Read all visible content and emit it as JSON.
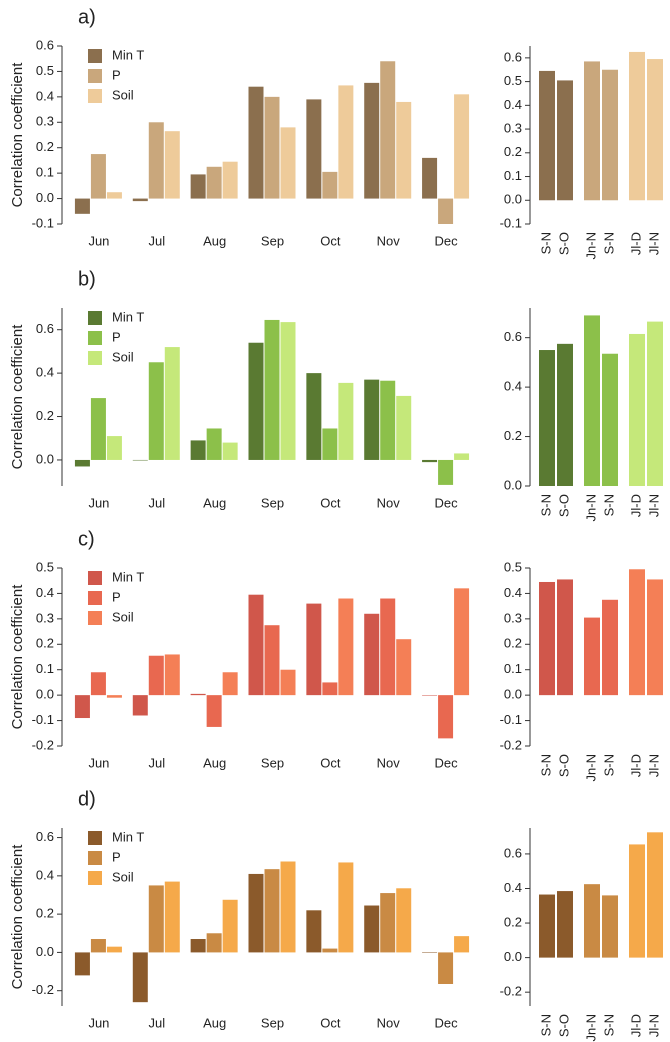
{
  "chart_data": [
    {
      "type": "bar",
      "panel_label": "a)",
      "ylabel": "Correlation coefficient",
      "legend": "upper left",
      "categories": [
        "Jun",
        "Jul",
        "Aug",
        "Sep",
        "Oct",
        "Nov",
        "Dec"
      ],
      "series": [
        {
          "name": "Min T",
          "color": "#8b6f4e",
          "values": [
            -0.06,
            -0.01,
            0.095,
            0.44,
            0.39,
            0.455,
            0.16
          ]
        },
        {
          "name": "P",
          "color": "#c9a77c",
          "values": [
            0.175,
            0.3,
            0.125,
            0.4,
            0.105,
            0.54,
            -0.1
          ]
        },
        {
          "name": "Soil",
          "color": "#eecb9a",
          "values": [
            0.025,
            0.265,
            0.145,
            0.28,
            0.445,
            0.38,
            0.41
          ]
        }
      ],
      "ylim": [
        -0.1,
        0.6
      ],
      "yticks": [
        -0.1,
        {
          "value": 0,
          "label": "0.0"
        },
        0.1,
        0.2,
        0.3,
        0.4,
        0.5,
        0.6
      ]
    },
    {
      "type": "bar",
      "categories": [
        "S-N",
        "S-O",
        "Jn-N",
        "S-N",
        "Jl-D",
        "Jl-N"
      ],
      "values": [
        0.545,
        0.505,
        0.585,
        0.55,
        0.625,
        0.595
      ],
      "colors": [
        "#8b6f4e",
        "#8b6f4e",
        "#c9a77c",
        "#c9a77c",
        "#eecb9a",
        "#eecb9a"
      ],
      "ylim": [
        -0.1,
        0.65
      ],
      "yticks": [
        -0.1,
        {
          "value": 0,
          "label": "0.0"
        },
        0.1,
        0.2,
        0.3,
        0.4,
        0.5,
        0.6
      ]
    },
    {
      "type": "bar",
      "panel_label": "b)",
      "ylabel": "Correlation coefficient",
      "legend": "upper left",
      "categories": [
        "Jun",
        "Jul",
        "Aug",
        "Sep",
        "Oct",
        "Nov",
        "Dec"
      ],
      "series": [
        {
          "name": "Min T",
          "color": "#5a7a32",
          "values": [
            -0.03,
            0.0,
            0.09,
            0.54,
            0.4,
            0.37,
            -0.01
          ]
        },
        {
          "name": "P",
          "color": "#8cc04a",
          "values": [
            0.285,
            0.45,
            0.145,
            0.645,
            0.145,
            0.365,
            -0.115
          ]
        },
        {
          "name": "Soil",
          "color": "#c5e87a",
          "values": [
            0.11,
            0.52,
            0.08,
            0.635,
            0.355,
            0.295,
            0.03
          ]
        }
      ],
      "ylim": [
        -0.12,
        0.7
      ],
      "yticks": [
        {
          "value": 0,
          "label": "0.0"
        },
        0.2,
        0.4,
        0.6
      ]
    },
    {
      "type": "bar",
      "categories": [
        "S-N",
        "S-O",
        "Jn-N",
        "S-N",
        "Jl-D",
        "Jl-N"
      ],
      "values": [
        0.55,
        0.575,
        0.69,
        0.535,
        0.615,
        0.665
      ],
      "colors": [
        "#5a7a32",
        "#5a7a32",
        "#8cc04a",
        "#8cc04a",
        "#c5e87a",
        "#c5e87a"
      ],
      "ylim": [
        0,
        0.72
      ],
      "yticks": [
        {
          "value": 0,
          "label": "0.0"
        },
        0.2,
        0.4,
        0.6
      ]
    },
    {
      "type": "bar",
      "panel_label": "c)",
      "ylabel": "Correlation coefficient",
      "legend": "upper left",
      "categories": [
        "Jun",
        "Jul",
        "Aug",
        "Sep",
        "Oct",
        "Nov",
        "Dec"
      ],
      "series": [
        {
          "name": "Min T",
          "color": "#d0574b",
          "values": [
            -0.09,
            -0.08,
            0.005,
            0.395,
            0.36,
            0.32,
            0.0
          ]
        },
        {
          "name": "P",
          "color": "#e86850",
          "values": [
            0.09,
            0.155,
            -0.125,
            0.275,
            0.05,
            0.38,
            -0.17
          ]
        },
        {
          "name": "Soil",
          "color": "#f47f56",
          "values": [
            -0.01,
            0.16,
            0.09,
            0.1,
            0.38,
            0.22,
            0.42
          ]
        }
      ],
      "ylim": [
        -0.2,
        0.5
      ],
      "yticks": [
        -0.2,
        -0.1,
        {
          "value": 0,
          "label": "0.0"
        },
        0.1,
        0.2,
        0.3,
        0.4,
        0.5
      ]
    },
    {
      "type": "bar",
      "categories": [
        "S-N",
        "S-O",
        "Jn-N",
        "S-N",
        "Jl-D",
        "Jl-N"
      ],
      "values": [
        0.445,
        0.455,
        0.305,
        0.375,
        0.495,
        0.455
      ],
      "colors": [
        "#d0574b",
        "#d0574b",
        "#e86850",
        "#e86850",
        "#f47f56",
        "#f47f56"
      ],
      "ylim": [
        -0.2,
        0.5
      ],
      "yticks": [
        -0.2,
        -0.1,
        {
          "value": 0,
          "label": "0.0"
        },
        0.1,
        0.2,
        0.3,
        0.4,
        0.5
      ]
    },
    {
      "type": "bar",
      "panel_label": "d)",
      "ylabel": "Correlation coefficient",
      "legend": "upper left",
      "categories": [
        "Jun",
        "Jul",
        "Aug",
        "Sep",
        "Oct",
        "Nov",
        "Dec"
      ],
      "series": [
        {
          "name": "Min T",
          "color": "#8b5a2b",
          "values": [
            -0.12,
            -0.26,
            0.07,
            0.41,
            0.22,
            0.245,
            0.0
          ]
        },
        {
          "name": "P",
          "color": "#c98a44",
          "values": [
            0.07,
            0.35,
            0.1,
            0.435,
            0.02,
            0.31,
            -0.165
          ]
        },
        {
          "name": "Soil",
          "color": "#f5a94a",
          "values": [
            0.03,
            0.37,
            0.275,
            0.475,
            0.47,
            0.335,
            0.085
          ]
        }
      ],
      "ylim": [
        -0.28,
        0.65
      ],
      "yticks": [
        -0.2,
        {
          "value": 0,
          "label": "0.0"
        },
        0.2,
        0.4,
        0.6
      ]
    },
    {
      "type": "bar",
      "categories": [
        "S-N",
        "S-O",
        "Jn-N",
        "S-N",
        "Jl-D",
        "Jl-N"
      ],
      "values": [
        0.365,
        0.385,
        0.425,
        0.36,
        0.655,
        0.725
      ],
      "colors": [
        "#8b5a2b",
        "#8b5a2b",
        "#c98a44",
        "#c98a44",
        "#f5a94a",
        "#f5a94a"
      ],
      "ylim": [
        -0.28,
        0.75
      ],
      "yticks": [
        -0.2,
        {
          "value": 0,
          "label": "0.0"
        },
        0.2,
        0.4,
        0.6
      ]
    }
  ]
}
